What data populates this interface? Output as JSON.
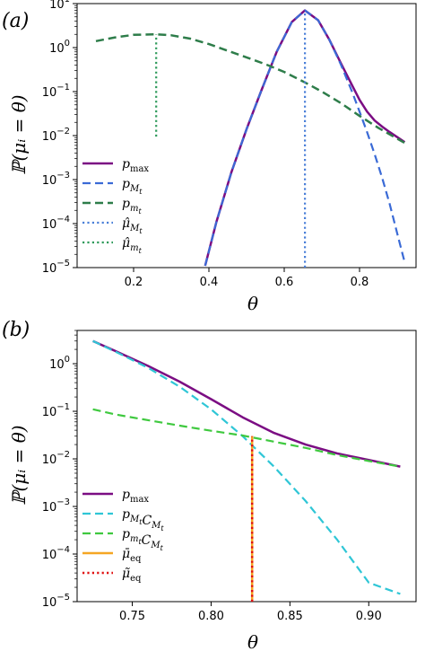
{
  "chart_data": [
    {
      "type": "line",
      "panel_label": "(a)",
      "xlabel": "θ",
      "ylabel": "ℙ(μᵢ = θ)",
      "yscale": "log",
      "xlim": [
        0.05,
        0.95
      ],
      "ylim": [
        1e-05,
        10
      ],
      "xticks": [
        0.2,
        0.4,
        0.6,
        0.8
      ],
      "xtick_labels": [
        "0.2",
        "0.4",
        "0.6",
        "0.8"
      ],
      "yticks": [
        1e-05,
        0.0001,
        0.001,
        0.01,
        0.1,
        1,
        10
      ],
      "legend_position": "lower-left",
      "series": [
        {
          "name": "p_max",
          "legend_label": "p",
          "legend_sub": "max",
          "color": "#7b0d83",
          "style": "solid",
          "width": 2.5,
          "x": [
            0.39,
            0.42,
            0.46,
            0.5,
            0.54,
            0.58,
            0.62,
            0.655,
            0.69,
            0.72,
            0.75,
            0.78,
            0.8,
            0.82,
            0.84,
            0.86,
            0.88,
            0.92
          ],
          "y": [
            1.1e-05,
            0.00011,
            0.0015,
            0.014,
            0.11,
            0.8,
            3.8,
            7.0,
            4.2,
            1.5,
            0.45,
            0.14,
            0.065,
            0.035,
            0.022,
            0.016,
            0.012,
            0.0071
          ]
        },
        {
          "name": "p_{M_t}",
          "legend_label": "p",
          "legend_sub": "M",
          "legend_subsub": "t",
          "color": "#3a6ad6",
          "style": "dashed",
          "width": 2.2,
          "x": [
            0.39,
            0.42,
            0.46,
            0.5,
            0.54,
            0.58,
            0.62,
            0.655,
            0.69,
            0.72,
            0.75,
            0.78,
            0.8,
            0.82,
            0.84,
            0.86,
            0.88,
            0.9,
            0.92
          ],
          "y": [
            1.1e-05,
            0.00011,
            0.0015,
            0.014,
            0.11,
            0.8,
            3.8,
            7.0,
            4.2,
            1.5,
            0.42,
            0.1,
            0.035,
            0.012,
            0.0038,
            0.0011,
            0.00028,
            6e-05,
            1.3e-05
          ]
        },
        {
          "name": "p_{m_t}",
          "legend_label": "p",
          "legend_sub": "m",
          "legend_subsub": "t",
          "color": "#2e7d4a",
          "style": "dashed",
          "width": 2.5,
          "x": [
            0.1,
            0.15,
            0.2,
            0.26,
            0.3,
            0.35,
            0.4,
            0.45,
            0.5,
            0.55,
            0.6,
            0.65,
            0.7,
            0.75,
            0.8,
            0.85,
            0.92
          ],
          "y": [
            1.4,
            1.7,
            1.95,
            2.0,
            1.9,
            1.6,
            1.2,
            0.85,
            0.6,
            0.42,
            0.28,
            0.17,
            0.1,
            0.055,
            0.028,
            0.015,
            0.0068
          ]
        },
        {
          "name": "μ̂_{M_t}",
          "legend_label": "μ̂",
          "legend_sub": "M",
          "legend_subsub": "t",
          "color": "#4a7fd8",
          "style": "dotted",
          "width": 2.2,
          "x": [
            0.655,
            0.655
          ],
          "y": [
            1e-05,
            7.0
          ]
        },
        {
          "name": "μ̂_{m_t}",
          "legend_label": "μ̂",
          "legend_sub": "m",
          "legend_subsub": "t",
          "color": "#2e9a5a",
          "style": "dotted",
          "width": 2.2,
          "x": [
            0.26,
            0.26
          ],
          "y": [
            0.0095,
            2.0
          ]
        }
      ]
    },
    {
      "type": "line",
      "panel_label": "(b)",
      "xlabel": "θ",
      "ylabel": "ℙ(μᵢ = θ)",
      "yscale": "log",
      "xlim": [
        0.715,
        0.93
      ],
      "ylim": [
        1e-05,
        5
      ],
      "xticks": [
        0.75,
        0.8,
        0.85,
        0.9
      ],
      "xtick_labels": [
        "0.75",
        "0.80",
        "0.85",
        "0.90"
      ],
      "yticks": [
        1e-05,
        0.0001,
        0.001,
        0.01,
        0.1,
        1
      ],
      "legend_position": "lower-left",
      "series": [
        {
          "name": "p_max",
          "legend_label": "p",
          "legend_sub": "max",
          "color": "#7b0d83",
          "style": "solid",
          "width": 2.5,
          "x": [
            0.725,
            0.74,
            0.76,
            0.78,
            0.8,
            0.82,
            0.84,
            0.86,
            0.88,
            0.9,
            0.92
          ],
          "y": [
            3.0,
            1.8,
            0.9,
            0.42,
            0.18,
            0.075,
            0.035,
            0.02,
            0.013,
            0.0095,
            0.0069
          ]
        },
        {
          "name": "p_{M_t} C_{M_t}",
          "legend_label": "p",
          "legend_sub": "M",
          "legend_subsub": "t",
          "legend_suffix": "C",
          "legend_suffix_sub": "M",
          "legend_suffix_subsub": "t",
          "color": "#2fc6d6",
          "style": "dashed",
          "width": 2.2,
          "x": [
            0.725,
            0.74,
            0.76,
            0.78,
            0.8,
            0.82,
            0.84,
            0.86,
            0.88,
            0.9,
            0.92
          ],
          "y": [
            3.0,
            1.75,
            0.82,
            0.33,
            0.11,
            0.03,
            0.0068,
            0.0013,
            0.0002,
            2.5e-05,
            1.45e-05
          ]
        },
        {
          "name": "p_{m_t} C_{M_t}",
          "legend_label": "p",
          "legend_sub": "m",
          "legend_subsub": "t",
          "legend_suffix": "C",
          "legend_suffix_sub": "M",
          "legend_suffix_subsub": "t",
          "color": "#3fc93f",
          "style": "dashed",
          "width": 2.2,
          "x": [
            0.725,
            0.74,
            0.76,
            0.78,
            0.8,
            0.82,
            0.84,
            0.86,
            0.88,
            0.9,
            0.92
          ],
          "y": [
            0.11,
            0.085,
            0.065,
            0.05,
            0.039,
            0.031,
            0.023,
            0.017,
            0.012,
            0.009,
            0.0069
          ]
        },
        {
          "name": "μ̄_eq",
          "legend_label": "μ̄",
          "legend_sub": "eq",
          "color": "#f5a623",
          "style": "solid",
          "width": 2.5,
          "x": [
            0.826,
            0.826
          ],
          "y": [
            1e-05,
            0.03
          ]
        },
        {
          "name": "μ̃_eq",
          "legend_label": "μ̃",
          "legend_sub": "eq",
          "color": "#e01010",
          "style": "dotted",
          "width": 2.5,
          "x": [
            0.826,
            0.826
          ],
          "y": [
            1e-05,
            0.03
          ]
        }
      ]
    }
  ]
}
